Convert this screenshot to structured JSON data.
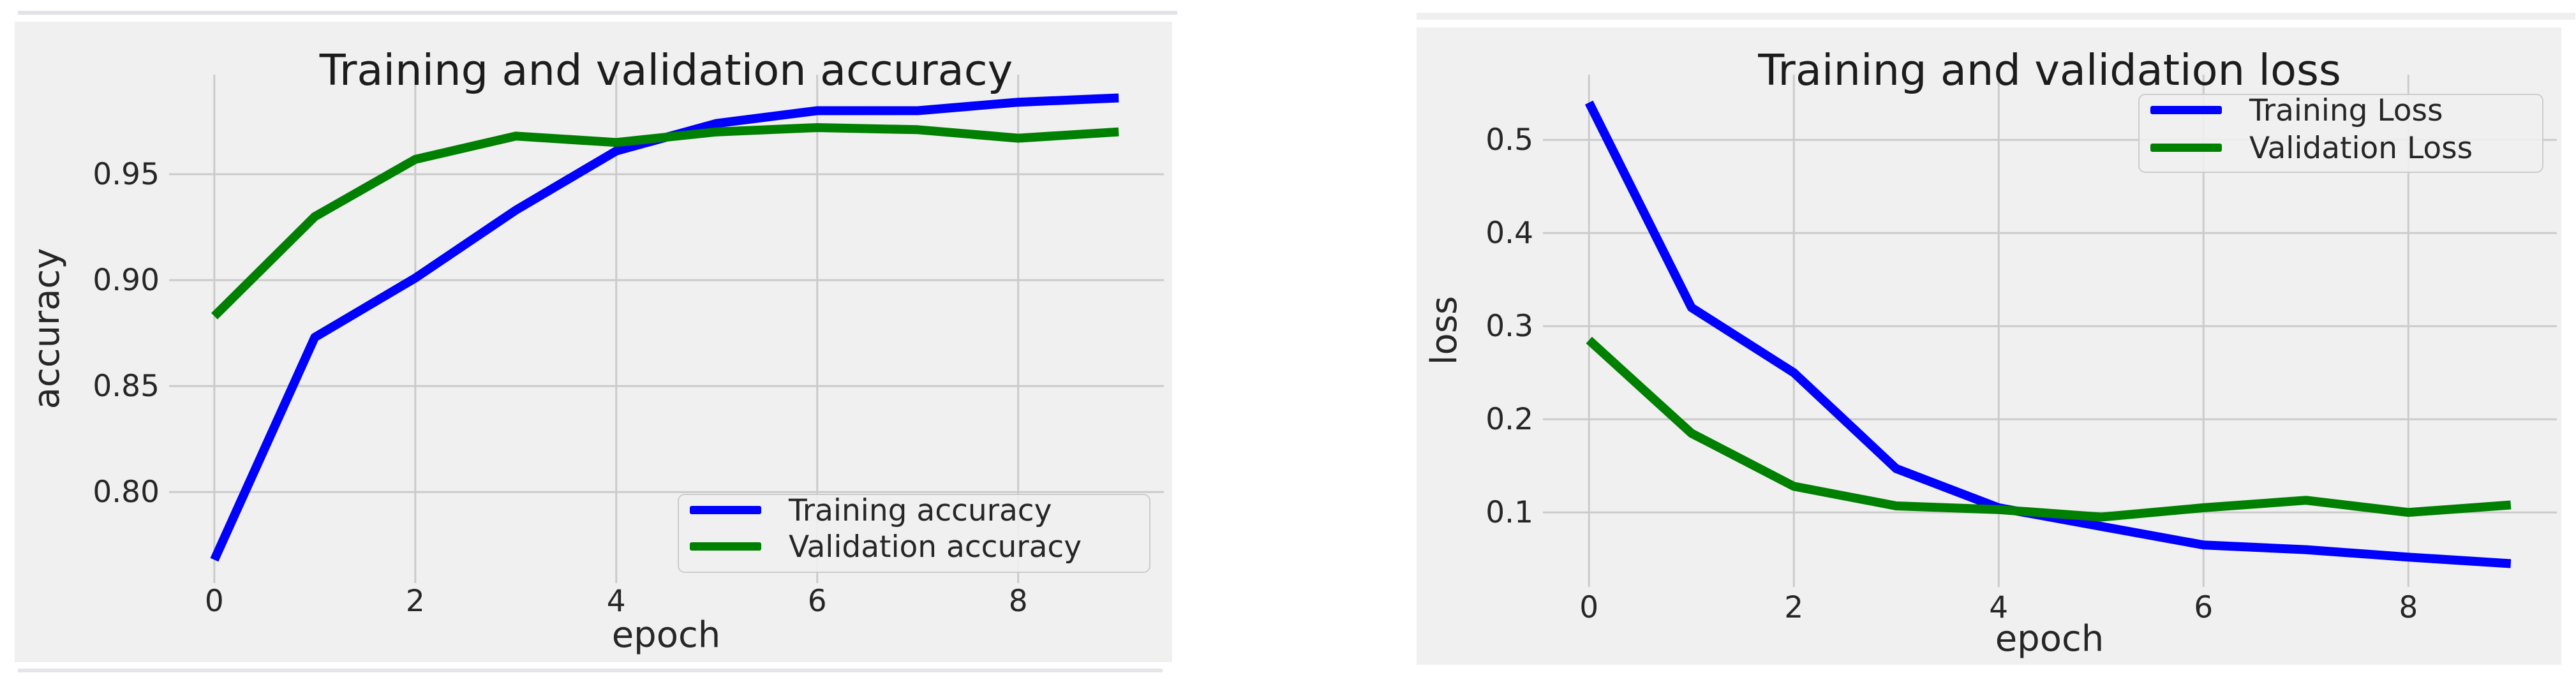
{
  "page": {
    "background": "#ffffff",
    "figure_background": "#f0f0f0",
    "grid_color": "#cbcbcb",
    "text_color": "#262626",
    "title_color": "#1c1c1c",
    "legend_border_color": "#cccccc",
    "accent_blue": "#0000ff",
    "accent_green": "#008000"
  },
  "chart_data": [
    {
      "type": "line",
      "title": "Training and validation accuracy",
      "xlabel": "epoch",
      "ylabel": "accuracy",
      "x": [
        0,
        1,
        2,
        3,
        4,
        5,
        6,
        7,
        8,
        9
      ],
      "series": [
        {
          "name": "Training accuracy",
          "color": "#0000ff",
          "values": [
            0.768,
            0.873,
            0.901,
            0.933,
            0.961,
            0.974,
            0.98,
            0.98,
            0.984,
            0.986
          ]
        },
        {
          "name": "Validation accuracy",
          "color": "#008000",
          "values": [
            0.883,
            0.93,
            0.957,
            0.968,
            0.965,
            0.97,
            0.972,
            0.971,
            0.967,
            0.97
          ]
        }
      ],
      "xlim": [
        -0.45,
        9.45
      ],
      "ylim": [
        0.757,
        0.997
      ],
      "x_ticks": [
        0,
        2,
        4,
        6,
        8
      ],
      "x_tick_labels": [
        "0",
        "2",
        "4",
        "6",
        "8"
      ],
      "y_ticks": [
        0.8,
        0.85,
        0.9,
        0.95
      ],
      "y_tick_labels": [
        "0.80",
        "0.85",
        "0.90",
        "0.95"
      ],
      "grid": true,
      "legend_position": "lower right"
    },
    {
      "type": "line",
      "title": "Training and validation loss",
      "xlabel": "epoch",
      "ylabel": "loss",
      "x": [
        0,
        1,
        2,
        3,
        4,
        5,
        6,
        7,
        8,
        9
      ],
      "series": [
        {
          "name": "Training Loss",
          "color": "#0000ff",
          "values": [
            0.54,
            0.32,
            0.25,
            0.147,
            0.105,
            0.085,
            0.065,
            0.06,
            0.052,
            0.045
          ]
        },
        {
          "name": "Validation Loss",
          "color": "#008000",
          "values": [
            0.285,
            0.185,
            0.128,
            0.107,
            0.103,
            0.095,
            0.105,
            0.113,
            0.1,
            0.108
          ]
        }
      ],
      "xlim": [
        -0.45,
        9.45
      ],
      "ylim": [
        0.02,
        0.57
      ],
      "x_ticks": [
        0,
        2,
        4,
        6,
        8
      ],
      "x_tick_labels": [
        "0",
        "2",
        "4",
        "6",
        "8"
      ],
      "y_ticks": [
        0.1,
        0.2,
        0.3,
        0.4,
        0.5
      ],
      "y_tick_labels": [
        "0.1",
        "0.2",
        "0.3",
        "0.4",
        "0.5"
      ],
      "grid": true,
      "legend_position": "upper right"
    }
  ]
}
